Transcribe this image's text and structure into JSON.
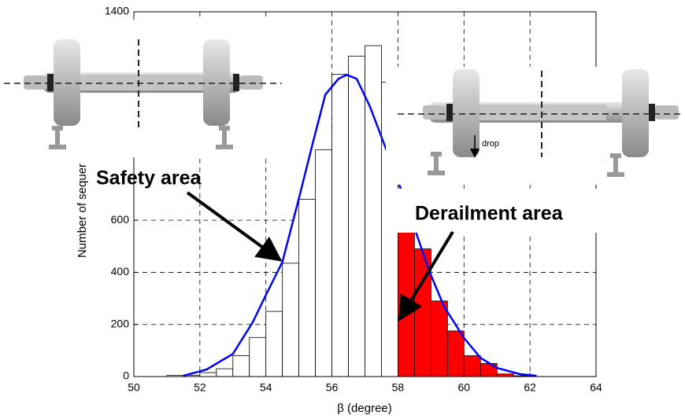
{
  "chart_data": {
    "type": "histogram",
    "xlabel": "β (degree)",
    "ylabel": "Number of sequer",
    "bins": [
      51.0,
      51.5,
      52.0,
      52.5,
      53.0,
      53.5,
      54.0,
      54.5,
      55.0,
      55.5,
      56.0,
      56.5,
      57.0,
      57.5,
      58.0,
      58.5,
      59.0,
      59.5,
      60.0,
      60.5,
      61.0,
      61.5,
      62.0
    ],
    "counts": [
      5,
      5,
      15,
      30,
      80,
      150,
      250,
      435,
      680,
      870,
      1160,
      1230,
      1270,
      1130,
      720,
      490,
      290,
      175,
      80,
      50,
      10,
      3
    ],
    "bar_colors": [
      "#ffffff",
      "#ffffff",
      "#ffffff",
      "#ffffff",
      "#ffffff",
      "#ffffff",
      "#ffffff",
      "#ffffff",
      "#ffffff",
      "#ffffff",
      "#ffffff",
      "#ffffff",
      "#ffffff",
      "#ffffff",
      "#ff0000",
      "#ff0000",
      "#ff0000",
      "#ff0000",
      "#ff0000",
      "#ff0000",
      "#ff0000",
      "#ff0000"
    ],
    "curve": {
      "color": "#0000ff",
      "x": [
        51.5,
        52.2,
        53.0,
        53.6,
        54.0,
        54.5,
        55.0,
        55.4,
        55.8,
        56.2,
        56.45,
        56.75,
        57.15,
        57.6,
        58.0,
        58.5,
        58.95,
        59.4,
        60.0,
        60.5,
        61.0,
        61.7,
        62.2
      ],
      "y": [
        3,
        27,
        87,
        208,
        313,
        440,
        684,
        886,
        1082,
        1143,
        1158,
        1143,
        1037,
        886,
        751,
        570,
        404,
        268,
        148,
        72,
        33,
        9,
        3
      ]
    },
    "xlim": [
      50,
      64
    ],
    "xticks": [
      50,
      52,
      54,
      56,
      58,
      60,
      62,
      64
    ],
    "ylim": [
      0,
      1400
    ],
    "yticks": [
      0,
      200,
      400,
      600,
      1400
    ],
    "grid": true,
    "annotations": [
      {
        "text": "Safety area",
        "color": "#00a651"
      },
      {
        "text": "Derailment area",
        "color": "#ee1111"
      },
      {
        "text": "drop",
        "color": "#000000"
      }
    ]
  }
}
